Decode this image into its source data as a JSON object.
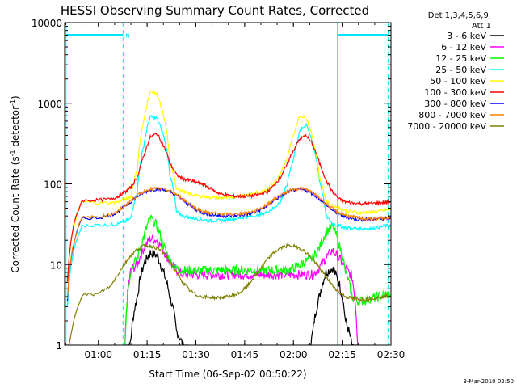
{
  "chart_data": {
    "type": "line",
    "title": "HESSI Observing Summary Count Rates, Corrected",
    "xlabel": "Start Time (06-Sep-02 00:50:22)",
    "ylabel_main": "Corrected Count Rate (s",
    "ylabel_sup1": "-1",
    "ylabel_mid": " detector",
    "ylabel_sup2": "-1",
    "ylabel_end": ")",
    "y_scale": "log",
    "ylim": [
      1,
      10000
    ],
    "xlim_minutes": [
      -0.37,
      100.0
    ],
    "x_ticks": [
      {
        "m": 10,
        "label": "01:00"
      },
      {
        "m": 25,
        "label": "01:15"
      },
      {
        "m": 40,
        "label": "01:30"
      },
      {
        "m": 55,
        "label": "01:45"
      },
      {
        "m": 70,
        "label": "02:00"
      },
      {
        "m": 85,
        "label": "02:15"
      },
      {
        "m": 100,
        "label": "02:30"
      }
    ],
    "y_ticks": [
      {
        "v": 1,
        "label": "1"
      },
      {
        "v": 10,
        "label": "10"
      },
      {
        "v": 100,
        "label": "100"
      },
      {
        "v": 1000,
        "label": "1000"
      },
      {
        "v": 10000,
        "label": "10000"
      }
    ],
    "legend_header": [
      "Det 1,3,4,5,6,9,",
      "Att 1"
    ],
    "legend_position": "right",
    "night_marker": "N",
    "markers": {
      "dashed_lines_minutes": [
        17.6,
        99.1
      ],
      "solid_lines_minutes": [
        0.0,
        83.6
      ],
      "night_bars": [
        [
          0.0,
          17.6
        ],
        [
          83.6,
          99.1
        ]
      ],
      "bar_level": 7000
    },
    "series": [
      {
        "name": "3 - 6 keV",
        "color": "#000000",
        "x": [
          0,
          5,
          10,
          14,
          16,
          18,
          20,
          22,
          24,
          26,
          28,
          30,
          32,
          34,
          36,
          38,
          40,
          42,
          44,
          46,
          48,
          50,
          52,
          54,
          56,
          58,
          60,
          62,
          64,
          66,
          68,
          70,
          72,
          74,
          76,
          78,
          80,
          82,
          84,
          86,
          88,
          90,
          92,
          94,
          96,
          98,
          100
        ],
        "y": [
          0,
          0,
          0,
          0,
          0,
          0,
          1.2,
          4,
          10,
          14,
          13,
          8,
          4,
          1.5,
          1,
          0,
          0,
          0,
          0,
          0,
          0,
          0,
          0,
          0,
          0,
          0,
          0,
          0,
          0,
          0,
          0,
          0,
          0,
          0,
          1.5,
          4,
          8,
          9,
          6,
          2,
          1,
          0,
          0,
          0,
          0,
          0,
          0
        ]
      },
      {
        "name": "6 - 12 keV",
        "color": "#ff00ff",
        "x": [
          0,
          5,
          10,
          14,
          16,
          18,
          20,
          22,
          24,
          26,
          28,
          30,
          32,
          34,
          36,
          38,
          40,
          42,
          44,
          46,
          48,
          50,
          52,
          54,
          56,
          58,
          60,
          62,
          64,
          66,
          68,
          70,
          72,
          74,
          76,
          78,
          80,
          82,
          84,
          86,
          88,
          90,
          92,
          94,
          96,
          98,
          100
        ],
        "y": [
          0,
          0,
          0,
          0,
          0,
          0,
          8.5,
          10,
          16,
          21,
          20,
          15,
          10.5,
          8.5,
          7.5,
          7.5,
          7.5,
          7.5,
          7.5,
          7.5,
          7.5,
          7.5,
          7.5,
          7.5,
          7.5,
          7.5,
          7.5,
          7.5,
          7.5,
          7.5,
          7.5,
          7.5,
          7.5,
          7.5,
          7.5,
          9,
          12,
          15,
          12,
          9,
          7,
          0,
          0,
          0,
          0,
          0,
          0
        ]
      },
      {
        "name": "12 - 25 keV",
        "color": "#00ff00",
        "x": [
          0,
          5,
          10,
          14,
          16,
          18,
          20,
          22,
          24,
          26,
          28,
          30,
          32,
          34,
          36,
          38,
          40,
          42,
          44,
          46,
          48,
          50,
          52,
          54,
          56,
          58,
          60,
          62,
          64,
          66,
          68,
          70,
          72,
          74,
          76,
          78,
          80,
          82,
          84,
          86,
          88,
          90,
          92,
          94,
          96,
          98,
          100
        ],
        "y": [
          0,
          0,
          0,
          0,
          0,
          0,
          8.5,
          12,
          22,
          38,
          30,
          17,
          11,
          9,
          8.5,
          8.5,
          8.5,
          8.5,
          8.5,
          8.5,
          8.5,
          8.5,
          8.5,
          8.5,
          8.5,
          8.5,
          8.5,
          8.5,
          8.5,
          8.5,
          8.5,
          9,
          10,
          11,
          12,
          16,
          25,
          30,
          18,
          8,
          4,
          3.5,
          3.6,
          3.8,
          4,
          4.2,
          4.3
        ]
      },
      {
        "name": "25 - 50 keV",
        "color": "#00ffff",
        "x": [
          0,
          5,
          10,
          14,
          16,
          18,
          20,
          22,
          24,
          26,
          28,
          30,
          32,
          34,
          36,
          38,
          40,
          42,
          44,
          46,
          48,
          50,
          52,
          54,
          56,
          58,
          60,
          62,
          64,
          66,
          68,
          70,
          72,
          74,
          76,
          78,
          80,
          82,
          84,
          86,
          88,
          90,
          92,
          94,
          96,
          98,
          100
        ],
        "y": [
          0,
          30,
          31,
          31,
          32,
          34,
          37,
          80,
          300,
          680,
          650,
          400,
          130,
          45,
          40,
          38,
          37,
          36,
          35,
          35,
          35,
          36,
          37,
          38,
          39,
          40,
          42,
          45,
          50,
          60,
          95,
          200,
          450,
          550,
          300,
          110,
          40,
          32,
          30,
          29,
          28,
          28,
          28,
          28,
          29,
          30,
          31
        ]
      },
      {
        "name": "50 - 100 keV",
        "color": "#ffff00",
        "x": [
          0,
          5,
          10,
          14,
          16,
          18,
          20,
          22,
          24,
          26,
          28,
          30,
          32,
          34,
          36,
          38,
          40,
          42,
          44,
          46,
          48,
          50,
          52,
          54,
          56,
          58,
          60,
          62,
          64,
          66,
          68,
          70,
          72,
          74,
          76,
          78,
          80,
          82,
          84,
          86,
          88,
          90,
          92,
          94,
          96,
          98,
          100
        ],
        "y": [
          0,
          60,
          58,
          58,
          60,
          63,
          70,
          150,
          600,
          1400,
          1300,
          700,
          180,
          90,
          80,
          75,
          72,
          70,
          68,
          67,
          67,
          68,
          70,
          72,
          74,
          77,
          80,
          88,
          100,
          130,
          200,
          400,
          700,
          650,
          350,
          120,
          60,
          55,
          50,
          47,
          45,
          44,
          44,
          45,
          46,
          47,
          48
        ]
      },
      {
        "name": "100 - 300 keV",
        "color": "#ff0000",
        "x": [
          0,
          5,
          10,
          14,
          16,
          18,
          20,
          22,
          24,
          26,
          28,
          30,
          32,
          34,
          36,
          38,
          40,
          42,
          44,
          46,
          48,
          50,
          52,
          54,
          56,
          58,
          60,
          62,
          64,
          66,
          68,
          70,
          72,
          74,
          76,
          78,
          80,
          82,
          84,
          86,
          88,
          90,
          92,
          94,
          96,
          98,
          100
        ],
        "y": [
          0,
          62,
          63,
          65,
          70,
          78,
          90,
          120,
          220,
          380,
          420,
          300,
          180,
          130,
          115,
          110,
          105,
          100,
          90,
          80,
          74,
          72,
          70,
          70,
          70,
          72,
          75,
          80,
          95,
          120,
          170,
          260,
          360,
          400,
          300,
          180,
          110,
          80,
          65,
          60,
          58,
          57,
          57,
          57,
          58,
          59,
          60
        ]
      },
      {
        "name": "300 - 800 keV",
        "color": "#0000ff",
        "x": [
          0,
          5,
          10,
          14,
          16,
          18,
          20,
          22,
          24,
          26,
          28,
          30,
          32,
          34,
          36,
          38,
          40,
          42,
          44,
          46,
          48,
          50,
          52,
          54,
          56,
          58,
          60,
          62,
          64,
          66,
          68,
          70,
          72,
          74,
          76,
          78,
          80,
          82,
          84,
          86,
          88,
          90,
          92,
          94,
          96,
          98,
          100
        ],
        "y": [
          0,
          37,
          38,
          41,
          45,
          52,
          60,
          70,
          78,
          84,
          86,
          84,
          80,
          72,
          63,
          55,
          48,
          44,
          42,
          41,
          40,
          40,
          40,
          41,
          42,
          44,
          48,
          54,
          62,
          70,
          78,
          84,
          86,
          83,
          75,
          65,
          55,
          47,
          42,
          39,
          37,
          36,
          36,
          36,
          37,
          37,
          38
        ]
      },
      {
        "name": "800 - 7000 keV",
        "color": "#ff8000",
        "x": [
          0,
          5,
          10,
          14,
          16,
          18,
          20,
          22,
          24,
          26,
          28,
          30,
          32,
          34,
          36,
          38,
          40,
          42,
          44,
          46,
          48,
          50,
          52,
          54,
          56,
          58,
          60,
          62,
          64,
          66,
          68,
          70,
          72,
          74,
          76,
          78,
          80,
          82,
          84,
          86,
          88,
          90,
          92,
          94,
          96,
          98,
          100
        ],
        "y": [
          0,
          38,
          39,
          42,
          46,
          53,
          62,
          72,
          80,
          86,
          88,
          86,
          82,
          74,
          65,
          57,
          50,
          46,
          44,
          43,
          42,
          42,
          42,
          43,
          44,
          46,
          50,
          56,
          64,
          72,
          80,
          86,
          88,
          85,
          77,
          67,
          57,
          49,
          44,
          41,
          39,
          38,
          37,
          37,
          37,
          38,
          38
        ]
      },
      {
        "name": "7000 - 20000 keV",
        "color": "#808000",
        "x": [
          0,
          5,
          10,
          14,
          16,
          18,
          20,
          22,
          24,
          26,
          28,
          30,
          32,
          34,
          36,
          38,
          40,
          42,
          44,
          46,
          48,
          50,
          52,
          54,
          56,
          58,
          60,
          62,
          64,
          66,
          68,
          70,
          72,
          74,
          76,
          78,
          80,
          82,
          84,
          86,
          88,
          90,
          92,
          94,
          96,
          98,
          100
        ],
        "y": [
          0,
          4.2,
          4.3,
          5.5,
          7.5,
          10,
          13,
          15.5,
          17,
          17,
          16,
          14,
          11,
          8,
          6,
          4.8,
          4.2,
          4,
          3.9,
          3.9,
          3.9,
          4,
          4.2,
          4.6,
          5.5,
          7,
          9,
          11.5,
          14,
          16,
          17,
          17,
          16,
          14,
          11.5,
          9,
          7,
          5.5,
          4.5,
          4,
          3.8,
          3.7,
          3.7,
          3.8,
          3.9,
          4,
          4.1
        ]
      }
    ]
  },
  "footer_stamp": "3-Mar-2010 02:50"
}
